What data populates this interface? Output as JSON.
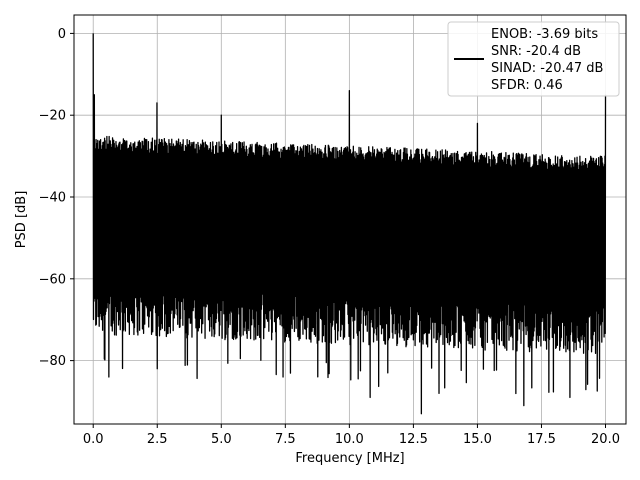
{
  "chart_data": {
    "type": "line",
    "title": "",
    "xlabel": "Frequency [MHz]",
    "ylabel": "PSD [dB]",
    "xlim": [
      -0.75,
      20.8
    ],
    "ylim": [
      -95.5,
      4.5
    ],
    "xticks": [
      0.0,
      2.5,
      5.0,
      7.5,
      10.0,
      12.5,
      15.0,
      17.5,
      20.0
    ],
    "xtick_labels": [
      "0.0",
      "2.5",
      "5.0",
      "7.5",
      "10.0",
      "12.5",
      "15.0",
      "17.5",
      "20.0"
    ],
    "yticks": [
      0,
      -20,
      -40,
      -60,
      -80
    ],
    "ytick_labels": [
      "0",
      "−20",
      "−40",
      "−60",
      "−80"
    ],
    "grid": true,
    "legend_position": "top-right",
    "series": [
      {
        "name": "ENOB: -3.69 bits\nSNR: -20.4 dB\nSINAD: -20.47 dB\nSFDR: 0.46",
        "color": "#000000",
        "x_range": [
          0,
          20
        ],
        "noise_floor_top_db": [
          -25,
          -30
        ],
        "noise_floor_bottom_db": [
          -70,
          -75
        ],
        "min_dips": [
          [
            0.6,
            -84
          ],
          [
            2.5,
            -82
          ],
          [
            7.4,
            -84
          ],
          [
            10.8,
            -89
          ],
          [
            11.5,
            -83
          ],
          [
            12.8,
            -93
          ],
          [
            13.5,
            -88
          ],
          [
            16.8,
            -91
          ],
          [
            18.6,
            -89
          ]
        ],
        "spurs": [
          [
            0.0,
            0
          ],
          [
            0.05,
            -15
          ],
          [
            2.5,
            -17
          ],
          [
            5.0,
            -20
          ],
          [
            10.0,
            -14
          ],
          [
            15.0,
            -22
          ],
          [
            20.0,
            -15
          ]
        ]
      }
    ],
    "legend_lines": [
      "ENOB: -3.69 bits",
      "SNR: -20.4 dB",
      "SINAD: -20.47 dB",
      "SFDR: 0.46"
    ]
  }
}
